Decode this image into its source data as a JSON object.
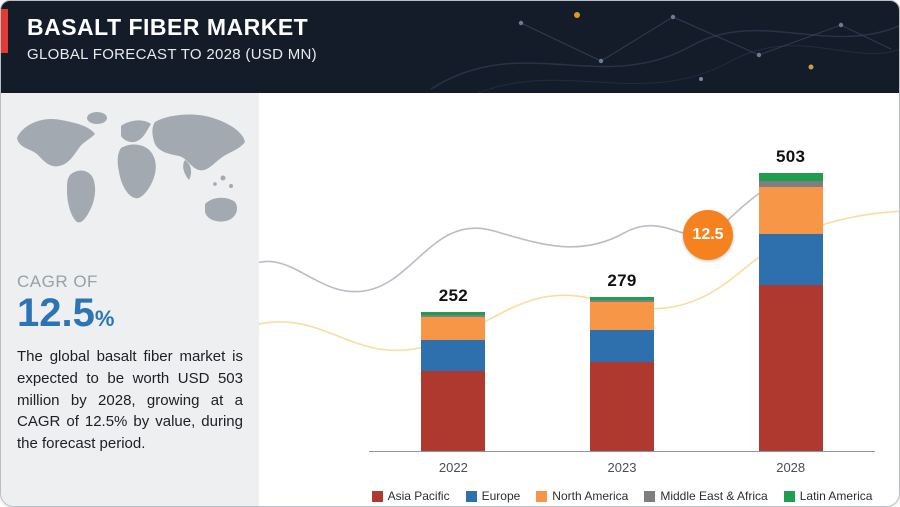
{
  "header": {
    "title": "BASALT FIBER MARKET",
    "subtitle": "GLOBAL FORECAST TO 2028 (USD MN)"
  },
  "sidebar": {
    "cagr_label": "CAGR OF",
    "cagr_value": "12.5",
    "cagr_unit": "%",
    "description": "The global basalt fiber market is expected to be worth USD 503 million by 2028, growing at a CAGR of 12.5% by value, during the forecast period."
  },
  "badge": {
    "value": "12.5",
    "color": "#f5821f"
  },
  "theme": {
    "header_bg": "#141c29",
    "accent_red": "#e23b33",
    "accent_blue": "#2d74b5",
    "sidebar_bg": "#edeff1"
  },
  "chart_data": {
    "type": "bar",
    "stacked": true,
    "title": "Basalt Fiber Market, Global Forecast to 2028 (USD MN)",
    "categories": [
      "2022",
      "2023",
      "2028"
    ],
    "totals": [
      252,
      279,
      503
    ],
    "series": [
      {
        "name": "Asia Pacific",
        "color": "#b0392f",
        "values": [
          144,
          162,
          300
        ]
      },
      {
        "name": "Europe",
        "color": "#2e6fad",
        "values": [
          57,
          57,
          92
        ]
      },
      {
        "name": "North America",
        "color": "#f79646",
        "values": [
          41,
          50,
          85
        ]
      },
      {
        "name": "Middle East & Africa",
        "color": "#7f7f7f",
        "values": [
          4,
          4,
          12
        ]
      },
      {
        "name": "Latin America",
        "color": "#1e9e4e",
        "values": [
          6,
          6,
          14
        ]
      }
    ],
    "ylabel": "USD MN",
    "ylim": [
      0,
      540
    ],
    "grid": false,
    "legend_position": "bottom"
  }
}
